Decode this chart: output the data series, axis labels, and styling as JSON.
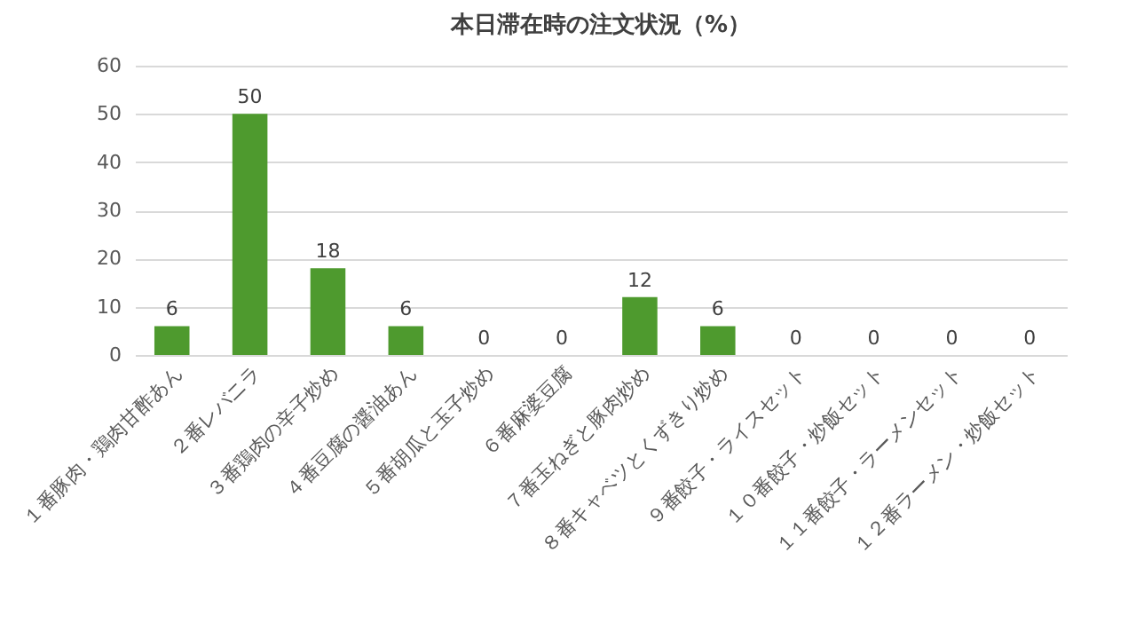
{
  "chart_data": {
    "type": "bar",
    "title": "本日滞在時の注文状況（%）",
    "categories": [
      "１番豚肉・鶏肉甘酢あん",
      "２番レバニラ",
      "３番鶏肉の辛子炒め",
      "４番豆腐の醤油あん",
      "５番胡瓜と玉子炒め",
      "６番麻婆豆腐",
      "７番玉ねぎと豚肉炒め",
      "８番キャベツとくずきり炒め",
      "９番餃子・ライスセット",
      "１０番餃子・炒飯セット",
      "１１番餃子・ラーメンセット",
      "１２番ラーメン・炒飯セット"
    ],
    "values": [
      6,
      50,
      18,
      6,
      0,
      0,
      12,
      6,
      0,
      0,
      0,
      0
    ],
    "color": "#4e9a2e",
    "ylim": [
      0,
      60
    ],
    "yticks": [
      0,
      10,
      20,
      30,
      40,
      50,
      60
    ],
    "grid": "y",
    "data_labels": true
  }
}
